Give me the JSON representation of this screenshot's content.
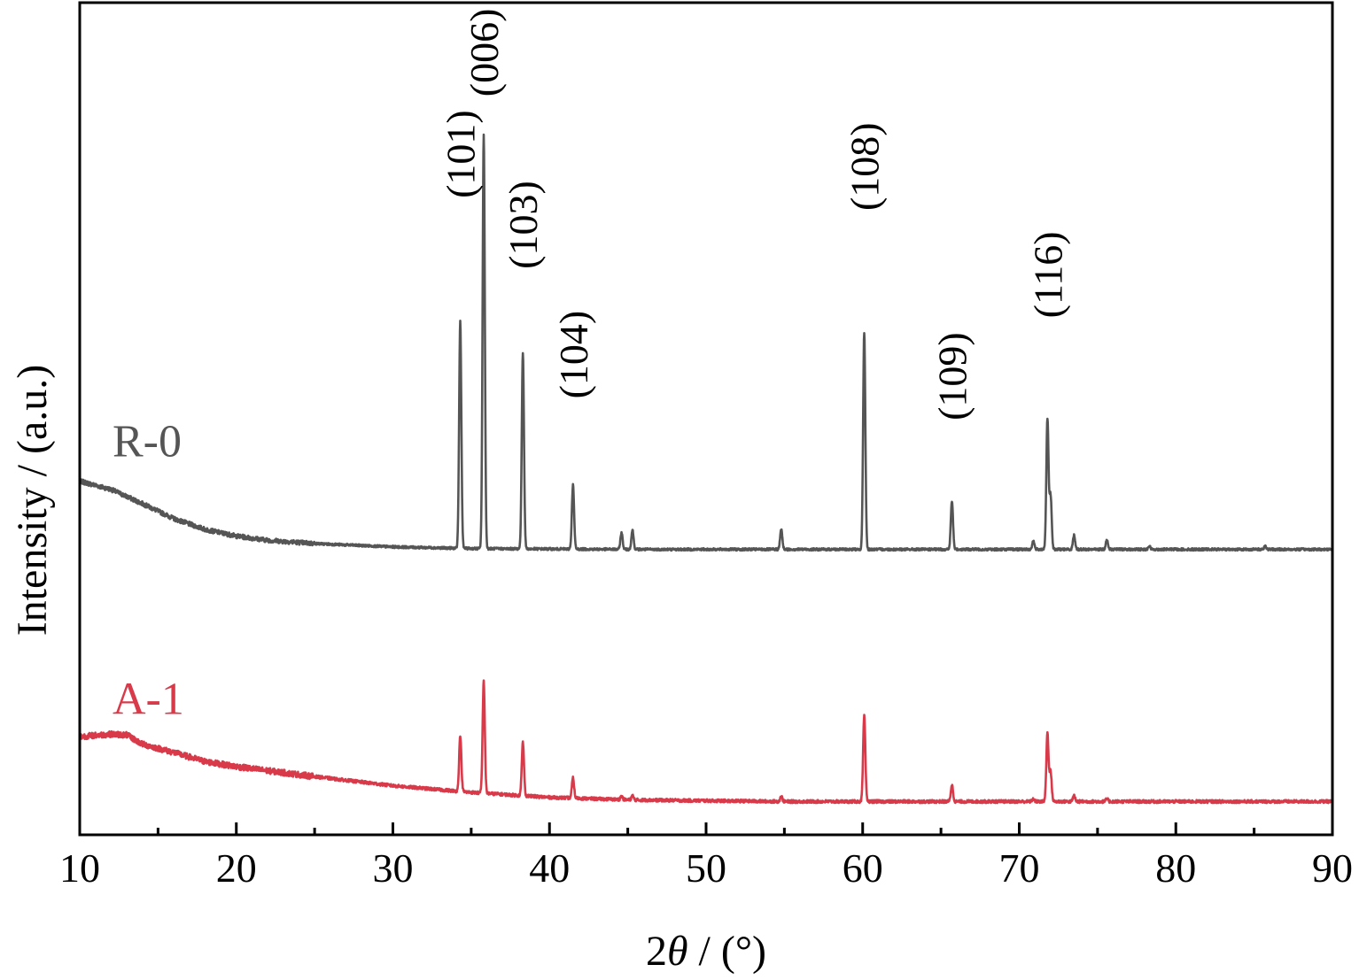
{
  "chart_data": {
    "type": "line",
    "title": "",
    "xlabel": {
      "prefix": "2",
      "symbol": "θ",
      "suffix": " / (°)"
    },
    "ylabel": "Intensity / (a.u.)",
    "xlim": [
      10,
      90
    ],
    "ylim": [
      0,
      100
    ],
    "x_ticks": [
      10,
      20,
      30,
      40,
      50,
      60,
      70,
      80,
      90
    ],
    "x_tick_labels": [
      "10",
      "20",
      "30",
      "40",
      "50",
      "60",
      "70",
      "80",
      "90"
    ],
    "y_ticks_shown": false,
    "grid": false,
    "legend": "none",
    "series": [
      {
        "name": "R-0",
        "color": "#555555",
        "baseline": [
          [
            10,
            42.5
          ],
          [
            12,
            41.5
          ],
          [
            14,
            39.8
          ],
          [
            16,
            38.0
          ],
          [
            18,
            36.7
          ],
          [
            20,
            35.9
          ],
          [
            22,
            35.4
          ],
          [
            25,
            35.0
          ],
          [
            30,
            34.6
          ],
          [
            35,
            34.4
          ],
          [
            45,
            34.3
          ],
          [
            90,
            34.3
          ]
        ],
        "peaks": [
          [
            34.3,
            27.3
          ],
          [
            35.8,
            49.8
          ],
          [
            38.3,
            23.6
          ],
          [
            41.5,
            7.7
          ],
          [
            44.6,
            2.0
          ],
          [
            45.3,
            2.3
          ],
          [
            54.8,
            2.4
          ],
          [
            60.1,
            26.1
          ],
          [
            65.7,
            5.8
          ],
          [
            70.9,
            1.0
          ],
          [
            71.8,
            15.7
          ],
          [
            72.0,
            6.5
          ],
          [
            73.5,
            1.7
          ],
          [
            75.6,
            1.2
          ],
          [
            78.3,
            0.4
          ],
          [
            85.7,
            0.4
          ]
        ]
      },
      {
        "name": "A-1",
        "color": "#d83a4a",
        "baseline": [
          [
            10,
            11.8
          ],
          [
            12,
            12.1
          ],
          [
            13,
            12.0
          ],
          [
            14,
            10.9
          ],
          [
            16,
            9.9
          ],
          [
            18,
            8.8
          ],
          [
            20,
            8.2
          ],
          [
            22,
            7.7
          ],
          [
            25,
            7.0
          ],
          [
            30,
            5.9
          ],
          [
            35,
            5.1
          ],
          [
            40,
            4.5
          ],
          [
            45,
            4.2
          ],
          [
            55,
            4.0
          ],
          [
            90,
            4.0
          ]
        ],
        "peaks": [
          [
            34.3,
            6.7
          ],
          [
            35.8,
            13.4
          ],
          [
            38.3,
            6.4
          ],
          [
            41.5,
            2.4
          ],
          [
            44.6,
            0.4
          ],
          [
            45.3,
            0.5
          ],
          [
            54.8,
            0.6
          ],
          [
            60.1,
            10.3
          ],
          [
            65.7,
            2.0
          ],
          [
            70.9,
            0.3
          ],
          [
            71.8,
            8.2
          ],
          [
            72.0,
            3.6
          ],
          [
            73.5,
            0.7
          ],
          [
            75.6,
            0.3
          ]
        ]
      }
    ],
    "annotations": [
      {
        "text": "(101)",
        "x": 34.3,
        "y": 81.8
      },
      {
        "text": "(006)",
        "x": 35.8,
        "y": 94.0
      },
      {
        "text": "(103)",
        "x": 38.3,
        "y": 73.3
      },
      {
        "text": "(104)",
        "x": 41.5,
        "y": 57.7
      },
      {
        "text": "(108)",
        "x": 60.1,
        "y": 80.3
      },
      {
        "text": "(109)",
        "x": 65.7,
        "y": 55.1
      },
      {
        "text": "(116)",
        "x": 71.8,
        "y": 67.3
      }
    ]
  }
}
